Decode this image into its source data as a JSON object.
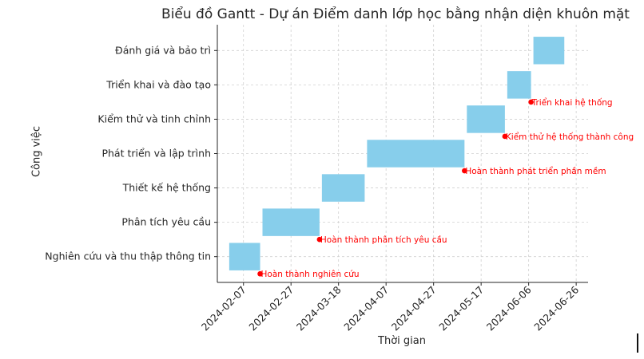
{
  "chart_data": {
    "type": "gantt",
    "title": "Biểu đồ Gantt - Dự án Điểm danh lớp học bằng nhận diện khuôn mặt",
    "xlabel": "Thời gian",
    "ylabel": "Công việc",
    "grid": true,
    "bar_color": "#87CEEB",
    "milestone_color": "#FF0000",
    "xlim": [
      "2024-01-27",
      "2024-07-01"
    ],
    "x_ticks": [
      "2024-02-07",
      "2024-02-27",
      "2024-03-18",
      "2024-04-07",
      "2024-04-27",
      "2024-05-17",
      "2024-06-06",
      "2024-06-26"
    ],
    "tasks": [
      {
        "name": "Nghiên cứu và thu thập thông tin",
        "start": "2024-02-01",
        "end": "2024-02-14"
      },
      {
        "name": "Phân tích yêu cầu",
        "start": "2024-02-15",
        "end": "2024-03-10"
      },
      {
        "name": "Thiết kế hệ thống",
        "start": "2024-03-11",
        "end": "2024-03-29"
      },
      {
        "name": "Phát triển và lập trình",
        "start": "2024-03-30",
        "end": "2024-05-10"
      },
      {
        "name": "Kiểm thử và tinh chỉnh",
        "start": "2024-05-11",
        "end": "2024-05-27"
      },
      {
        "name": "Triển khai và đào tạo",
        "start": "2024-05-28",
        "end": "2024-06-07"
      },
      {
        "name": "Đánh giá và bảo trì",
        "start": "2024-06-08",
        "end": "2024-06-21"
      }
    ],
    "milestones": [
      {
        "label": "Hoàn thành nghiên cứu",
        "date": "2024-02-14",
        "row": 0
      },
      {
        "label": "Hoàn thành phân tích yêu cầu",
        "date": "2024-03-10",
        "row": 1
      },
      {
        "label": "Hoàn thành phát triển phần mềm",
        "date": "2024-05-10",
        "row": 3
      },
      {
        "label": "Kiểm thử hệ thống thành công",
        "date": "2024-05-27",
        "row": 4
      },
      {
        "label": "Triển khai hệ thống",
        "date": "2024-06-07",
        "row": 5
      }
    ]
  }
}
